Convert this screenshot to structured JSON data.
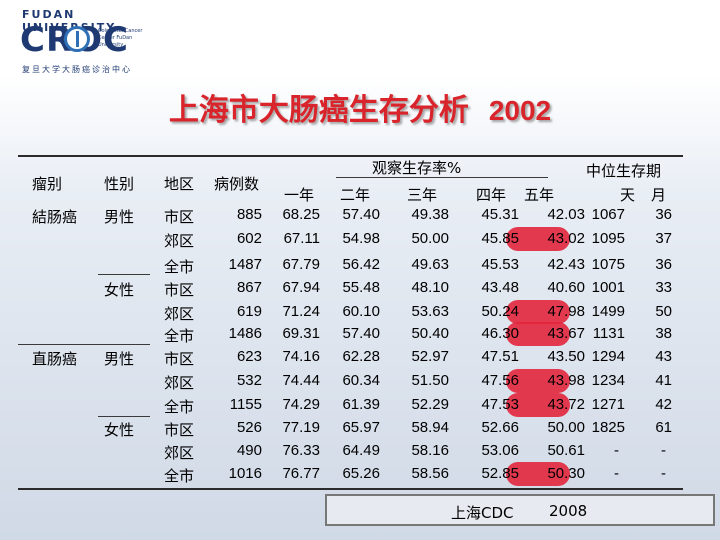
{
  "logo": {
    "university": "FUDAN UNIVERSITY",
    "name": "CROC",
    "subtitle": "Colorectal Cancer Center FuDan University",
    "chinese": "复旦大学大肠癌诊治中心"
  },
  "title": {
    "main": "上海市大肠癌生存分析",
    "year": "2002"
  },
  "headers": {
    "cancer_type": "瘤别",
    "sex": "性别",
    "region": "地区",
    "cases": "病例数",
    "observed_survival": "观察生存率%",
    "y1": "一年",
    "y2": "二年",
    "y3": "三年",
    "y4": "四年",
    "y5": "五年",
    "median_survival": "中位生存期",
    "days": "天",
    "months": "月"
  },
  "groups": {
    "colon": "結肠癌",
    "rectum": "直肠癌",
    "male": "男性",
    "female": "女性"
  },
  "rows": [
    {
      "region": "市区",
      "cases": "885",
      "y1": "68.25",
      "y2": "57.40",
      "y3": "49.38",
      "y4": "45.31",
      "y5": "42.03",
      "days": "1067",
      "months": "36"
    },
    {
      "region": "郊区",
      "cases": "602",
      "y1": "67.11",
      "y2": "54.98",
      "y3": "50.00",
      "y4": "45.85",
      "y5": "43.02",
      "days": "1095",
      "months": "37"
    },
    {
      "region": "全市",
      "cases": "1487",
      "y1": "67.79",
      "y2": "56.42",
      "y3": "49.63",
      "y4": "45.53",
      "y5": "42.43",
      "days": "1075",
      "months": "36"
    },
    {
      "region": "市区",
      "cases": "867",
      "y1": "67.94",
      "y2": "55.48",
      "y3": "48.10",
      "y4": "43.48",
      "y5": "40.60",
      "days": "1001",
      "months": "33"
    },
    {
      "region": "郊区",
      "cases": "619",
      "y1": "71.24",
      "y2": "60.10",
      "y3": "53.63",
      "y4": "50.24",
      "y5": "47.98",
      "days": "1499",
      "months": "50"
    },
    {
      "region": "全市",
      "cases": "1486",
      "y1": "69.31",
      "y2": "57.40",
      "y3": "50.40",
      "y4": "46.30",
      "y5": "43.67",
      "days": "1131",
      "months": "38"
    },
    {
      "region": "市区",
      "cases": "623",
      "y1": "74.16",
      "y2": "62.28",
      "y3": "52.97",
      "y4": "47.51",
      "y5": "43.50",
      "days": "1294",
      "months": "43"
    },
    {
      "region": "郊区",
      "cases": "532",
      "y1": "74.44",
      "y2": "60.34",
      "y3": "51.50",
      "y4": "47.56",
      "y5": "43.98",
      "days": "1234",
      "months": "41"
    },
    {
      "region": "全市",
      "cases": "1155",
      "y1": "74.29",
      "y2": "61.39",
      "y3": "52.29",
      "y4": "47.53",
      "y5": "43.72",
      "days": "1271",
      "months": "42"
    },
    {
      "region": "市区",
      "cases": "526",
      "y1": "77.19",
      "y2": "65.97",
      "y3": "58.94",
      "y4": "52.66",
      "y5": "50.00",
      "days": "1825",
      "months": "61"
    },
    {
      "region": "郊区",
      "cases": "490",
      "y1": "76.33",
      "y2": "64.49",
      "y3": "58.16",
      "y4": "53.06",
      "y5": "50.61",
      "days": "-",
      "months": "-"
    },
    {
      "region": "全市",
      "cases": "1016",
      "y1": "76.77",
      "y2": "65.26",
      "y3": "58.56",
      "y4": "52.85",
      "y5": "50.30",
      "days": "-",
      "months": "-"
    }
  ],
  "highlight_color": "#e2263c",
  "title_color": "#d8242a",
  "source": {
    "org": "上海CDC",
    "year": "2008"
  }
}
